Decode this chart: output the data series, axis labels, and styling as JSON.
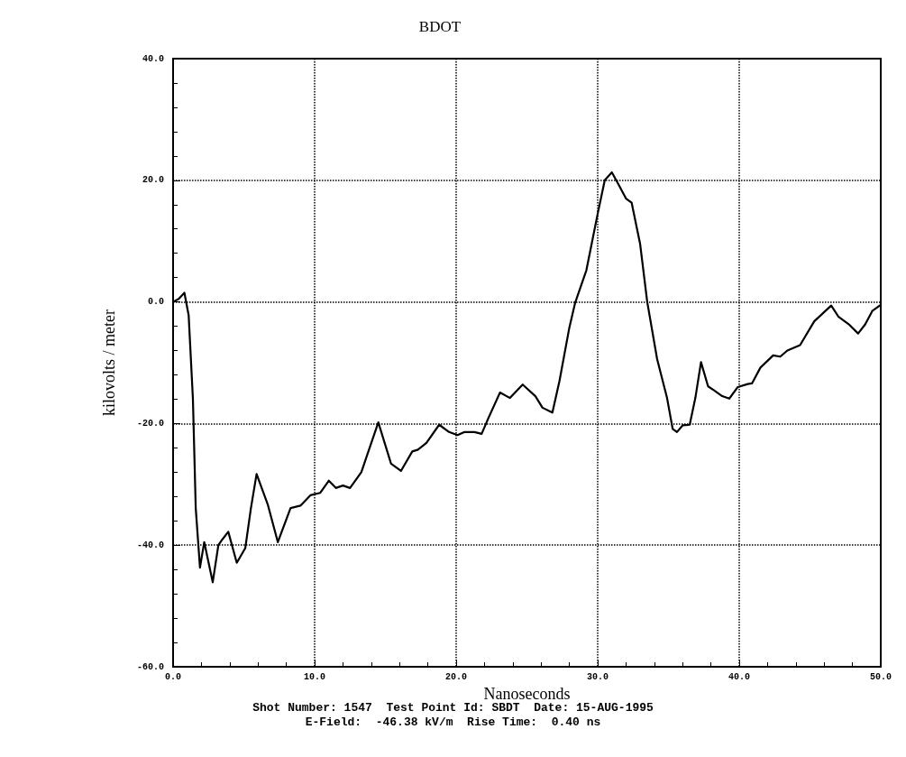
{
  "chart_data": {
    "type": "line",
    "title": "BDOT",
    "xlabel": "Nanoseconds",
    "ylabel": "kilovolts / meter",
    "annotations": [
      "Shot Number: 1547  Test Point Id: SBDT  Date: 15-AUG-1995",
      "E-Field:  -46.38 kV/m  Rise Time:  0.40 ns"
    ],
    "xlim": [
      0,
      50
    ],
    "ylim": [
      -60,
      40
    ],
    "xticks": [
      {
        "value": 0,
        "label": "0.0"
      },
      {
        "value": 10,
        "label": "10.0"
      },
      {
        "value": 20,
        "label": "20.0"
      },
      {
        "value": 30,
        "label": "30.0"
      },
      {
        "value": 40,
        "label": "40.0"
      },
      {
        "value": 50,
        "label": "50.0"
      }
    ],
    "yticks": [
      {
        "value": -60,
        "label": "-60.0"
      },
      {
        "value": -40,
        "label": "-40.0"
      },
      {
        "value": -20,
        "label": "-20.0"
      },
      {
        "value": 0,
        "label": "0.0"
      },
      {
        "value": 20,
        "label": "20.0"
      },
      {
        "value": 40,
        "label": "40.0"
      }
    ],
    "grid": true,
    "marker": "none",
    "line_style": "solid",
    "series": [
      {
        "color": "#000000",
        "x": [
          0,
          0.4,
          0.8,
          1.1,
          1.4,
          1.6,
          1.9,
          2.2,
          2.8,
          3.2,
          3.5,
          3.9,
          4.5,
          5.1,
          5.5,
          5.9,
          6.7,
          7.4,
          8.3,
          9,
          9.7,
          10.4,
          11,
          11.5,
          12,
          12.5,
          13.3,
          14.5,
          15.4,
          16.1,
          16.9,
          17.3,
          17.9,
          18.8,
          19.5,
          20.1,
          20.6,
          21.3,
          21.8,
          22.3,
          23.1,
          23.8,
          24.7,
          25.6,
          26.1,
          26.8,
          27.3,
          28,
          28.4,
          29.2,
          30,
          30.5,
          31,
          31.5,
          32,
          32.4,
          33,
          33.5,
          34.2,
          34.9,
          35.3,
          35.6,
          36,
          36.5,
          36.9,
          37.3,
          37.8,
          38.2,
          38.8,
          39.3,
          39.9,
          40.6,
          40.9,
          41.5,
          42.4,
          42.9,
          43.4,
          44.3,
          45.3,
          46.5,
          47,
          47.8,
          48.4,
          48.9,
          49.4,
          50
        ],
        "values": [
          0,
          0.5,
          1.5,
          -2.2,
          -15.9,
          -33.9,
          -43.7,
          -39.5,
          -46.1,
          -40,
          -39,
          -37.8,
          -42.9,
          -40.5,
          -33.9,
          -28.3,
          -33.4,
          -39.5,
          -33.9,
          -33.5,
          -31.8,
          -31.4,
          -29.4,
          -30.6,
          -30.2,
          -30.6,
          -28,
          -19.8,
          -26.6,
          -27.8,
          -24.6,
          -24.3,
          -23.2,
          -20.2,
          -21.4,
          -21.9,
          -21.4,
          -21.4,
          -21.7,
          -19,
          -14.9,
          -15.8,
          -13.6,
          -15.5,
          -17.4,
          -18.2,
          -13,
          -4.2,
          -0.2,
          5.2,
          14.5,
          20,
          21.3,
          19.2,
          17,
          16.3,
          9.5,
          0,
          -9.4,
          -15.8,
          -20.9,
          -21.4,
          -20.3,
          -20.2,
          -15.8,
          -9.9,
          -13.9,
          -14.5,
          -15.5,
          -15.9,
          -14,
          -13.5,
          -13.4,
          -10.8,
          -8.8,
          -9,
          -8,
          -7.1,
          -3.2,
          -0.6,
          -2.4,
          -3.8,
          -5.2,
          -3.7,
          -1.5,
          -0.5
        ]
      }
    ]
  }
}
